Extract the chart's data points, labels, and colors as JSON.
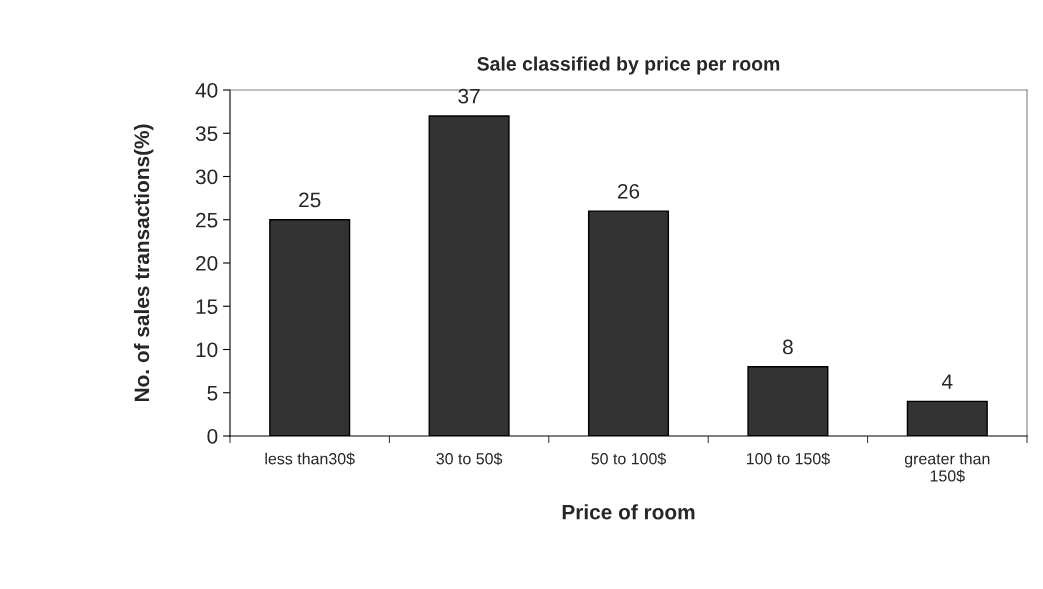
{
  "chart_data": {
    "type": "bar",
    "title": "Sale classified by price per room",
    "xlabel": "Price of room",
    "ylabel": "No. of sales transactions(%)",
    "categories": [
      "less than30$",
      "30 to 50$",
      "50 to 100$",
      "100 to 150$",
      "greater than\n150$"
    ],
    "values": [
      25,
      37,
      26,
      8,
      4
    ],
    "color": "#333333",
    "ylim": [
      0,
      40
    ],
    "yticks": [
      0,
      5,
      10,
      15,
      20,
      25,
      30,
      35,
      40
    ],
    "grid": false,
    "data_labels": true
  }
}
